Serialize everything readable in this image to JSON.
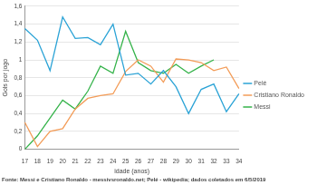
{
  "chart_data": {
    "type": "line",
    "x_label": "idade (anos)",
    "y_label": "Gols por jogo",
    "source": "Fonte: Messi e Cristiano Ronaldo - messivsronaldo.net; Pelé - wikipedia; dados coletados em 6/5/2019",
    "categories": [
      "17",
      "18",
      "19",
      "20",
      "21",
      "22",
      "23",
      "24",
      "25",
      "26",
      "27",
      "28",
      "29",
      "30",
      "31",
      "32",
      "33",
      "34"
    ],
    "series": [
      {
        "name": "Pelé",
        "color": "#2ba3d6",
        "values": [
          1.35,
          1.22,
          0.88,
          1.48,
          1.24,
          1.25,
          1.17,
          1.4,
          0.83,
          0.85,
          0.73,
          0.88,
          0.7,
          0.4,
          0.67,
          0.73,
          0.42,
          0.62
        ]
      },
      {
        "name": "Cristiano Ronaldo",
        "color": "#f39c58",
        "values": [
          0.3,
          0.03,
          0.2,
          0.23,
          0.45,
          0.57,
          0.6,
          0.62,
          0.87,
          1.0,
          0.93,
          0.75,
          1.01,
          1.0,
          0.97,
          0.88,
          0.92,
          0.68
        ]
      },
      {
        "name": "Messi",
        "color": "#35b34a",
        "values": [
          0.0,
          0.15,
          0.35,
          0.55,
          0.45,
          0.65,
          0.93,
          0.85,
          1.32,
          0.97,
          0.88,
          0.85,
          0.95,
          0.85,
          0.93,
          1.0,
          null,
          null
        ]
      }
    ],
    "ylim": [
      0,
      1.6
    ],
    "yticks": [
      0,
      {
        "value": 0.2,
        "label": "0,2"
      },
      {
        "value": 0.4,
        "label": "0,4"
      },
      {
        "value": 0.6,
        "label": "0,6"
      },
      {
        "value": 0.8,
        "label": "0,8"
      },
      1,
      {
        "value": 1.2,
        "label": "1,2"
      },
      {
        "value": 1.4,
        "label": "1,4"
      },
      {
        "value": 1.6,
        "label": "1,6"
      }
    ],
    "grid": true,
    "legend": "right",
    "marker": "none",
    "line_style": "solid"
  }
}
